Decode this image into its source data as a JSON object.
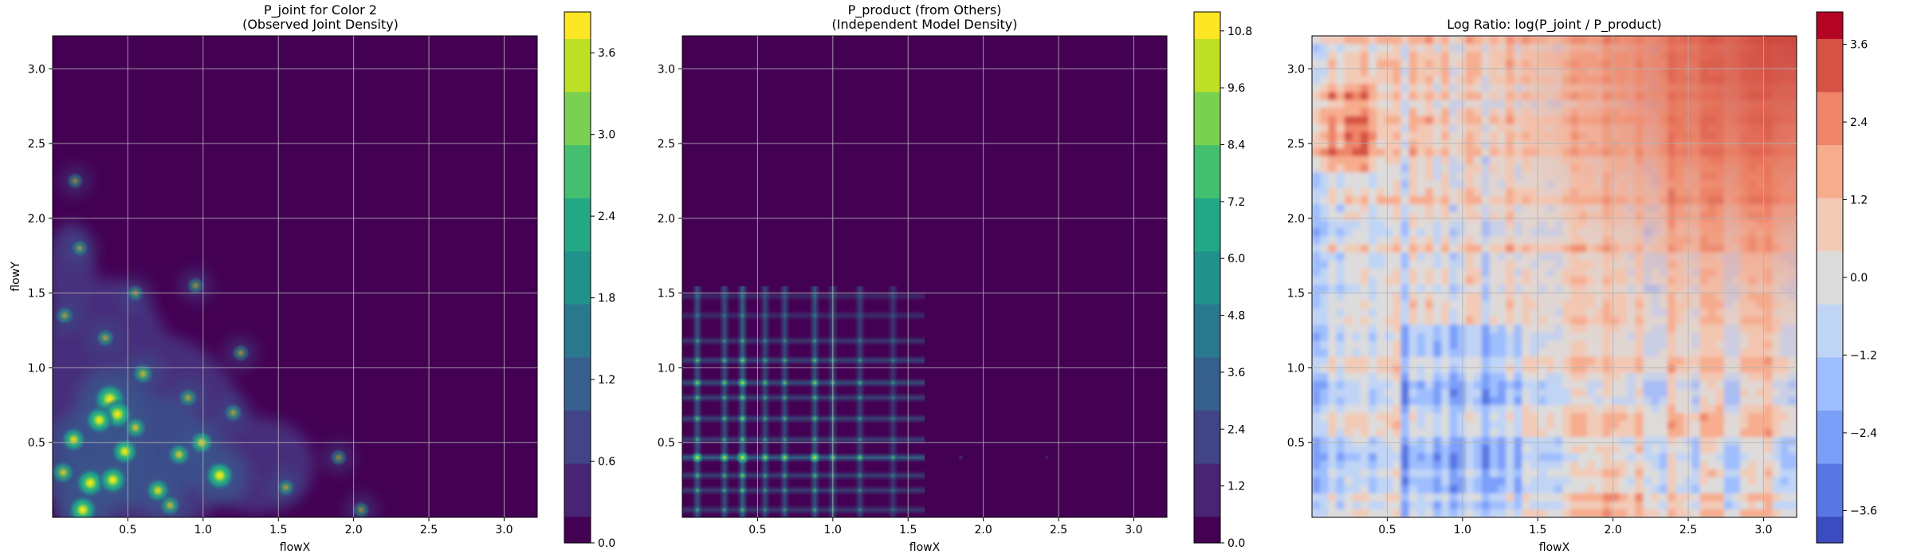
{
  "chart_data": [
    {
      "type": "heatmap",
      "title_line1": "P_joint for Color 2",
      "title_line2": "(Observed Joint Density)",
      "xlabel": "flowX",
      "ylabel": "flowY",
      "xlim": [
        0.0,
        3.22
      ],
      "ylim": [
        0.0,
        3.22
      ],
      "x_ticks": [
        "0.5",
        "1.0",
        "1.5",
        "2.0",
        "2.5",
        "3.0"
      ],
      "y_ticks": [
        "0.5",
        "1.0",
        "1.5",
        "2.0",
        "2.5",
        "3.0"
      ],
      "grid": true,
      "colormap": "viridis",
      "colorbar": {
        "min": 0.0,
        "max": 3.9,
        "ticks": [
          "0.0",
          "0.6",
          "1.2",
          "1.8",
          "2.4",
          "3.0",
          "3.6"
        ]
      },
      "peaks": [
        {
          "x": 0.38,
          "y": 0.79,
          "v": 3.8
        },
        {
          "x": 0.43,
          "y": 0.69,
          "v": 3.0
        },
        {
          "x": 0.31,
          "y": 0.65,
          "v": 2.4
        },
        {
          "x": 0.25,
          "y": 0.23,
          "v": 2.8
        },
        {
          "x": 0.4,
          "y": 0.25,
          "v": 2.6
        },
        {
          "x": 0.2,
          "y": 0.05,
          "v": 2.6
        },
        {
          "x": 1.11,
          "y": 0.28,
          "v": 2.8
        },
        {
          "x": 0.48,
          "y": 0.44,
          "v": 2.0
        },
        {
          "x": 0.14,
          "y": 0.52,
          "v": 1.6
        },
        {
          "x": 0.07,
          "y": 0.3,
          "v": 1.2
        },
        {
          "x": 0.7,
          "y": 0.18,
          "v": 1.5
        },
        {
          "x": 0.84,
          "y": 0.42,
          "v": 1.2
        },
        {
          "x": 0.99,
          "y": 0.5,
          "v": 1.4
        },
        {
          "x": 0.6,
          "y": 0.96,
          "v": 0.9
        },
        {
          "x": 0.9,
          "y": 0.8,
          "v": 0.6
        },
        {
          "x": 1.2,
          "y": 0.7,
          "v": 0.5
        },
        {
          "x": 0.35,
          "y": 1.2,
          "v": 0.5
        },
        {
          "x": 0.08,
          "y": 1.35,
          "v": 0.45
        },
        {
          "x": 0.95,
          "y": 1.55,
          "v": 0.35
        },
        {
          "x": 0.18,
          "y": 1.8,
          "v": 0.35
        },
        {
          "x": 1.55,
          "y": 0.2,
          "v": 0.5
        },
        {
          "x": 1.9,
          "y": 0.4,
          "v": 0.3
        },
        {
          "x": 2.05,
          "y": 0.05,
          "v": 0.35
        },
        {
          "x": 0.15,
          "y": 2.25,
          "v": 0.25
        },
        {
          "x": 1.25,
          "y": 1.1,
          "v": 0.35
        },
        {
          "x": 0.55,
          "y": 1.5,
          "v": 0.35
        },
        {
          "x": 0.78,
          "y": 0.08,
          "v": 0.9
        },
        {
          "x": 0.55,
          "y": 0.6,
          "v": 1.1
        }
      ]
    },
    {
      "type": "heatmap",
      "title_line1": "P_product (from Others)",
      "title_line2": "(Independent Model Density)",
      "xlabel": "flowX",
      "ylabel": "",
      "xlim": [
        0.0,
        3.22
      ],
      "ylim": [
        0.0,
        3.22
      ],
      "x_ticks": [
        "0.5",
        "1.0",
        "1.5",
        "2.0",
        "2.5",
        "3.0"
      ],
      "y_ticks": [
        "0.5",
        "1.0",
        "1.5",
        "2.0",
        "2.5",
        "3.0"
      ],
      "grid": true,
      "colormap": "viridis",
      "colorbar": {
        "min": 0.0,
        "max": 11.2,
        "ticks": [
          "0.0",
          "1.2",
          "2.4",
          "3.6",
          "4.8",
          "6.0",
          "7.2",
          "8.4",
          "9.6",
          "10.8"
        ]
      },
      "marginal_x": [
        {
          "c": 0.1,
          "w": 0.8
        },
        {
          "c": 0.28,
          "w": 0.7
        },
        {
          "c": 0.4,
          "w": 1.0
        },
        {
          "c": 0.55,
          "w": 0.6
        },
        {
          "c": 0.68,
          "w": 0.65
        },
        {
          "c": 0.88,
          "w": 0.8
        },
        {
          "c": 1.0,
          "w": 0.55
        },
        {
          "c": 1.18,
          "w": 0.5
        },
        {
          "c": 1.4,
          "w": 0.35
        },
        {
          "c": 1.85,
          "w": 0.15
        },
        {
          "c": 2.42,
          "w": 0.12
        }
      ],
      "marginal_y": [
        {
          "c": 0.05,
          "w": 0.4
        },
        {
          "c": 0.18,
          "w": 0.45
        },
        {
          "c": 0.28,
          "w": 0.5
        },
        {
          "c": 0.4,
          "w": 1.0
        },
        {
          "c": 0.52,
          "w": 0.45
        },
        {
          "c": 0.66,
          "w": 0.55
        },
        {
          "c": 0.8,
          "w": 0.5
        },
        {
          "c": 0.9,
          "w": 0.7
        },
        {
          "c": 1.05,
          "w": 0.55
        },
        {
          "c": 1.18,
          "w": 0.35
        },
        {
          "c": 1.35,
          "w": 0.2
        },
        {
          "c": 1.48,
          "w": 0.15
        }
      ]
    },
    {
      "type": "heatmap",
      "title_line1": "Log Ratio: log(P_joint / P_product)",
      "title_line2": "",
      "xlabel": "flowX",
      "ylabel": "",
      "xlim": [
        0.0,
        3.22
      ],
      "ylim": [
        0.0,
        3.22
      ],
      "x_ticks": [
        "0.5",
        "1.0",
        "1.5",
        "2.0",
        "2.5",
        "3.0"
      ],
      "y_ticks": [
        "0.5",
        "1.0",
        "1.5",
        "2.0",
        "2.5",
        "3.0"
      ],
      "grid": true,
      "colormap": "coolwarm",
      "colorbar": {
        "min": -4.1,
        "max": 4.1,
        "ticks": [
          "−3.6",
          "−2.4",
          "−1.2",
          "0.0",
          "1.2",
          "2.4",
          "3.6"
        ]
      }
    }
  ]
}
